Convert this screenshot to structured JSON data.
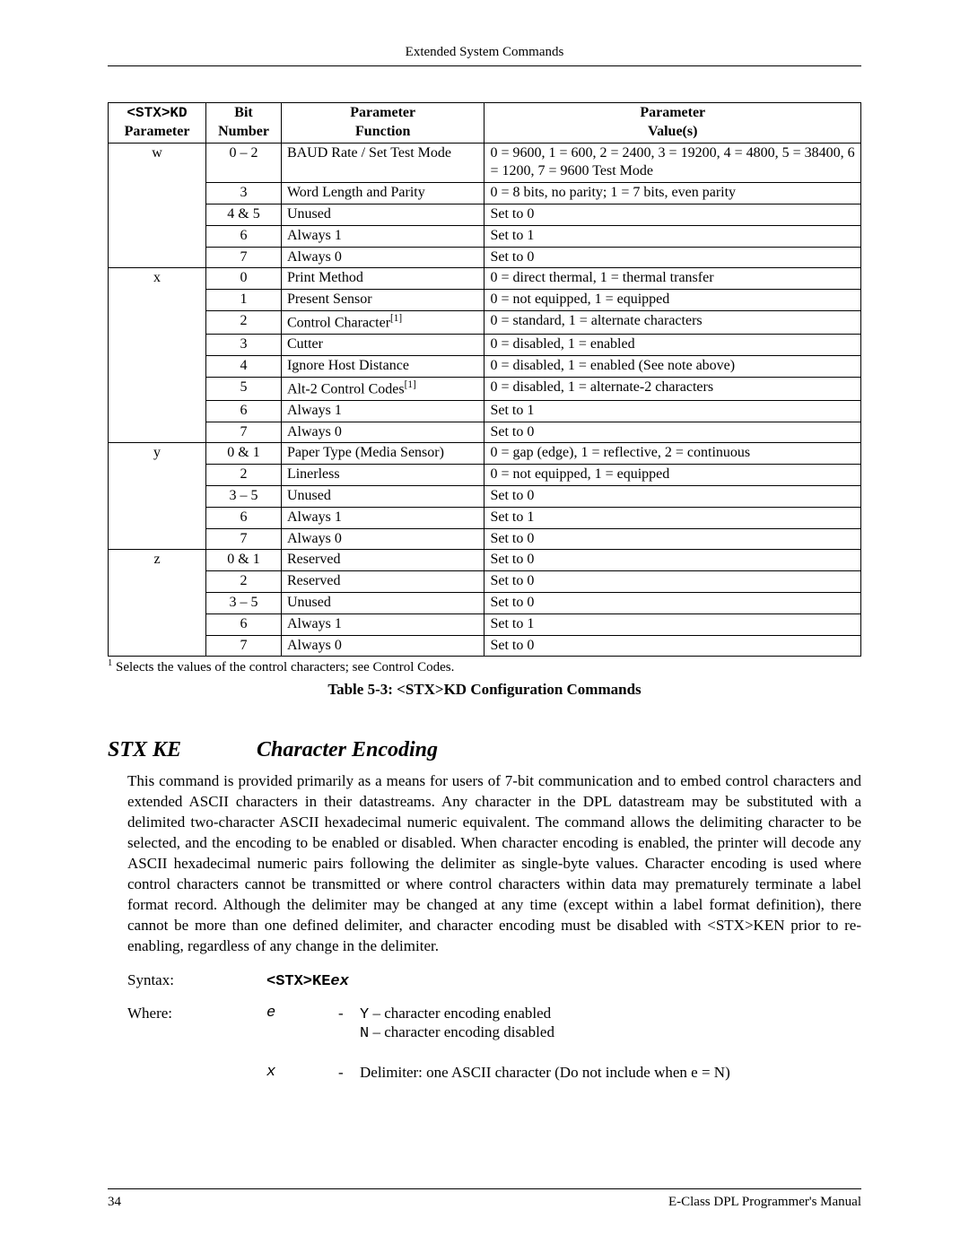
{
  "header": {
    "title": "Extended System Commands"
  },
  "table": {
    "headers": {
      "h1a": "<STX>KD",
      "h1b": "Parameter",
      "h2a": "Bit",
      "h2b": "Number",
      "h3a": "Parameter",
      "h3b": "Function",
      "h4a": "Parameter",
      "h4b": "Value(s)"
    },
    "col_widths": [
      "13%",
      "10%",
      "27%",
      "50%"
    ],
    "border_color": "#000000",
    "groups": [
      {
        "param": "w",
        "rows": [
          {
            "bit": "0 – 2",
            "func": "BAUD Rate / Set Test Mode",
            "val": "0 = 9600,  1 = 600,  2 = 2400,  3 = 19200,  4 = 4800, 5 = 38400,  6 = 1200,  7 = 9600 Test Mode"
          },
          {
            "bit": "3",
            "func": "Word Length and Parity",
            "val": "0 = 8 bits, no parity;   1 = 7 bits, even parity"
          },
          {
            "bit": "4 & 5",
            "func": "Unused",
            "val": "Set to 0"
          },
          {
            "bit": "6",
            "func": "Always 1",
            "val": "Set to 1"
          },
          {
            "bit": "7",
            "func": "Always 0",
            "val": "Set to 0"
          }
        ]
      },
      {
        "param": "x",
        "rows": [
          {
            "bit": "0",
            "func": "Print Method",
            "val": "0 = direct thermal,   1 = thermal transfer"
          },
          {
            "bit": "1",
            "func": "Present Sensor",
            "val": "0 = not equipped,   1 = equipped"
          },
          {
            "bit": "2",
            "func": "Control Character",
            "sup": "[1]",
            "val": "0 = standard,   1 = alternate characters"
          },
          {
            "bit": "3",
            "func": "Cutter",
            "val": "0 = disabled,   1 = enabled"
          },
          {
            "bit": "4",
            "func": "Ignore Host Distance",
            "val": "0 = disabled,   1 = enabled     (See note above)"
          },
          {
            "bit": "5",
            "func": "Alt-2 Control Codes",
            "sup": "[1]",
            "val": "0 = disabled,   1 = alternate-2 characters"
          },
          {
            "bit": "6",
            "func": "Always 1",
            "val": "Set to 1"
          },
          {
            "bit": "7",
            "func": "Always 0",
            "val": "Set to 0"
          }
        ]
      },
      {
        "param": "y",
        "rows": [
          {
            "bit": "0 & 1",
            "func": "Paper Type (Media Sensor)",
            "val": "0 = gap (edge),   1 = reflective,  2 = continuous"
          },
          {
            "bit": "2",
            "func": "Linerless",
            "val": "0 = not equipped,   1 = equipped"
          },
          {
            "bit": "3 – 5",
            "func": "Unused",
            "val": "Set to 0"
          },
          {
            "bit": "6",
            "func": "Always 1",
            "val": "Set to 1"
          },
          {
            "bit": "7",
            "func": "Always 0",
            "val": "Set to 0"
          }
        ]
      },
      {
        "param": "z",
        "rows": [
          {
            "bit": "0 & 1",
            "func": "Reserved",
            "val": "Set to 0"
          },
          {
            "bit": "2",
            "func": "Reserved",
            "val": "Set to 0"
          },
          {
            "bit": "3 – 5",
            "func": "Unused",
            "val": "Set to 0"
          },
          {
            "bit": "6",
            "func": "Always 1",
            "val": "Set to 1"
          },
          {
            "bit": "7",
            "func": "Always 0",
            "val": "Set to 0"
          }
        ]
      }
    ],
    "footnote_sup": "1",
    "footnote": " Selects the values of the control characters; see Control Codes.",
    "caption": "Table 5-3: <STX>KD Configuration Commands"
  },
  "section": {
    "cmd": "STX KE",
    "title": "Character Encoding",
    "prose": "This command is provided primarily as a means for users of 7-bit communication and to embed control characters and extended ASCII characters in their datastreams. Any character in the DPL datastream may be substituted with a delimited two-character ASCII hexadecimal numeric equivalent. The command allows the delimiting character to be selected, and the encoding to be enabled or disabled. When character encoding is enabled, the printer will decode any ASCII hexadecimal numeric pairs following the delimiter as single-byte values. Character encoding is used where control characters cannot be transmitted or where control characters within data may prematurely terminate a label format record. Although the delimiter may be changed at any time (except within a label format definition), there cannot be more than one defined delimiter, and character encoding must be disabled with <STX>KEN prior to re-enabling, regardless of any change in the delimiter.",
    "syntax_label": "Syntax:",
    "syntax_prefix": "<STX>KE",
    "syntax_args": "ex",
    "where_label": "Where:",
    "where": [
      {
        "sym": "e",
        "lines": [
          "Y – character encoding enabled",
          "N – character encoding disabled"
        ],
        "first_prefix": "Y",
        "second_prefix": "N"
      },
      {
        "sym": "x",
        "lines": [
          "Delimiter: one ASCII character (Do not include when e = N)"
        ]
      }
    ]
  },
  "footer": {
    "page_number": "34",
    "manual": "E-Class DPL Programmer's Manual"
  }
}
